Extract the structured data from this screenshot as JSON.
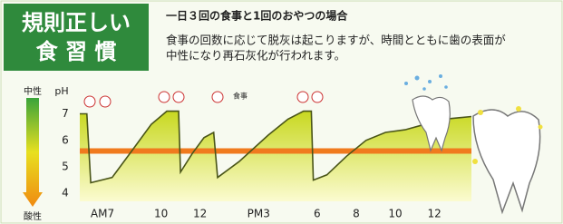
{
  "chart_data": {
    "type": "area",
    "title": [
      "規則正しい",
      "食 習 慣"
    ],
    "subtitle": "一日３回の食事と1回のおやつの場合",
    "description": [
      "食事の回数に応じて脱灰は起こりますが、時間とともに歯の表面が",
      "中性になり再石灰化が行われます。"
    ],
    "y_label": "pH",
    "y_top_label": "中性",
    "y_bottom_label": "酸性",
    "meal_label": "食事",
    "x": [
      5.84,
      6.2,
      6.4,
      7.5,
      8.5,
      9.5,
      10.3,
      10.9,
      11.0,
      11.6,
      12.2,
      12.7,
      12.9,
      14.0,
      15.5,
      16.5,
      17.3,
      17.7,
      17.8,
      18.5,
      19.5,
      20.5,
      21.5,
      22.5,
      23.5,
      24.5,
      25.9
    ],
    "values": [
      7.0,
      7.0,
      4.4,
      4.6,
      5.6,
      6.6,
      7.1,
      7.1,
      4.8,
      5.5,
      6.1,
      6.3,
      4.6,
      5.2,
      6.2,
      6.8,
      7.1,
      7.1,
      4.5,
      4.7,
      5.4,
      6.0,
      6.3,
      6.4,
      6.6,
      6.8,
      6.9
    ],
    "color": "#4a5518",
    "fill_color": "#e6e430",
    "reference_line": {
      "value": 5.6,
      "color": "#f07a1e"
    },
    "xlim": [
      5.84,
      25.9
    ],
    "ylim": [
      3.7,
      7.6
    ],
    "yticks": [
      4,
      5,
      6,
      7
    ],
    "xticks": [
      {
        "value": 7,
        "label": "AM7"
      },
      10,
      12,
      {
        "value": 15,
        "label": "PM3"
      },
      {
        "value": 18,
        "label": "6"
      },
      {
        "value": 20,
        "label": "8"
      },
      {
        "value": 22,
        "label": "10"
      },
      {
        "value": 24,
        "label": "12"
      }
    ]
  }
}
